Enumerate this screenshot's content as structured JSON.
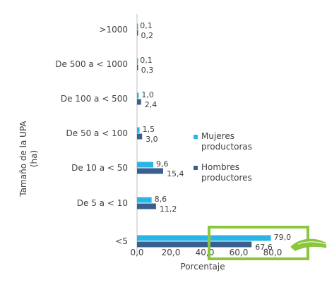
{
  "chart_data": {
    "type": "bar",
    "orientation": "horizontal",
    "categories": [
      ">1000",
      "De 500 a < 1000",
      "De 100 a < 500",
      "De 50 a < 100",
      "De 10 a < 50",
      "De 5 a < 10",
      "<5"
    ],
    "series": [
      {
        "name": "Mujeres productoras",
        "color": "#2bb5e6",
        "values": [
          0.1,
          0.1,
          1.0,
          1.5,
          9.6,
          8.6,
          79.0
        ],
        "labels": [
          "0,1",
          "0,1",
          "1,0",
          "1,5",
          "9,6",
          "8,6",
          "79,0"
        ]
      },
      {
        "name": "Hombres productores",
        "color": "#3a5f8f",
        "values": [
          0.2,
          0.3,
          2.4,
          3.0,
          15.4,
          11.2,
          67.6
        ],
        "labels": [
          "0,2",
          "0,3",
          "2,4",
          "3,0",
          "15,4",
          "11,2",
          "67,6"
        ]
      }
    ],
    "xlabel": "Porcentaje",
    "ylabel_lines": [
      "Tamaño de la UPA",
      "(ha)"
    ],
    "xlim": [
      0,
      100
    ],
    "xticks": [
      0,
      20,
      40,
      60,
      80
    ],
    "xtick_labels": [
      "0,0",
      "20,0",
      "40,0",
      "60,0",
      "80,0"
    ],
    "legend_position": "right",
    "highlight": {
      "category": "<5",
      "color": "#8cc63f"
    },
    "grid": false
  }
}
